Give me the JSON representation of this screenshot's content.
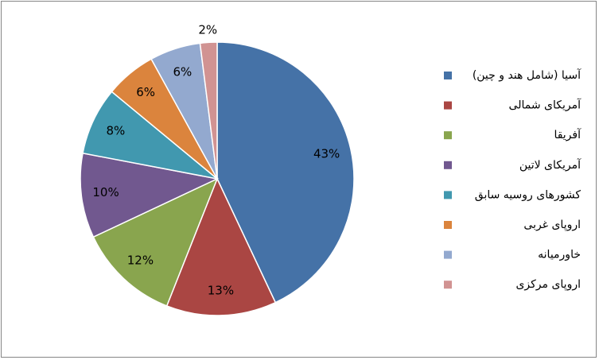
{
  "chart_data": {
    "type": "pie",
    "categories": [
      "آسیا (شامل هند و چین)",
      "آمریکای شمالی",
      "آفریقا",
      "آمریکای لاتین",
      "کشورهای روسیه سابق",
      "اروپای غربی",
      "خاورمیانه",
      "اروپای مرکزی"
    ],
    "values": [
      43,
      13,
      12,
      10,
      8,
      6,
      6,
      2
    ],
    "value_labels": [
      "43%",
      "13%",
      "12%",
      "10%",
      "8%",
      "6%",
      "6%",
      "2%"
    ],
    "colors": [
      "#4572A7",
      "#AA4643",
      "#89A54E",
      "#71588F",
      "#4198AF",
      "#DB843D",
      "#93A9CF",
      "#D19392"
    ],
    "legend": "right"
  }
}
